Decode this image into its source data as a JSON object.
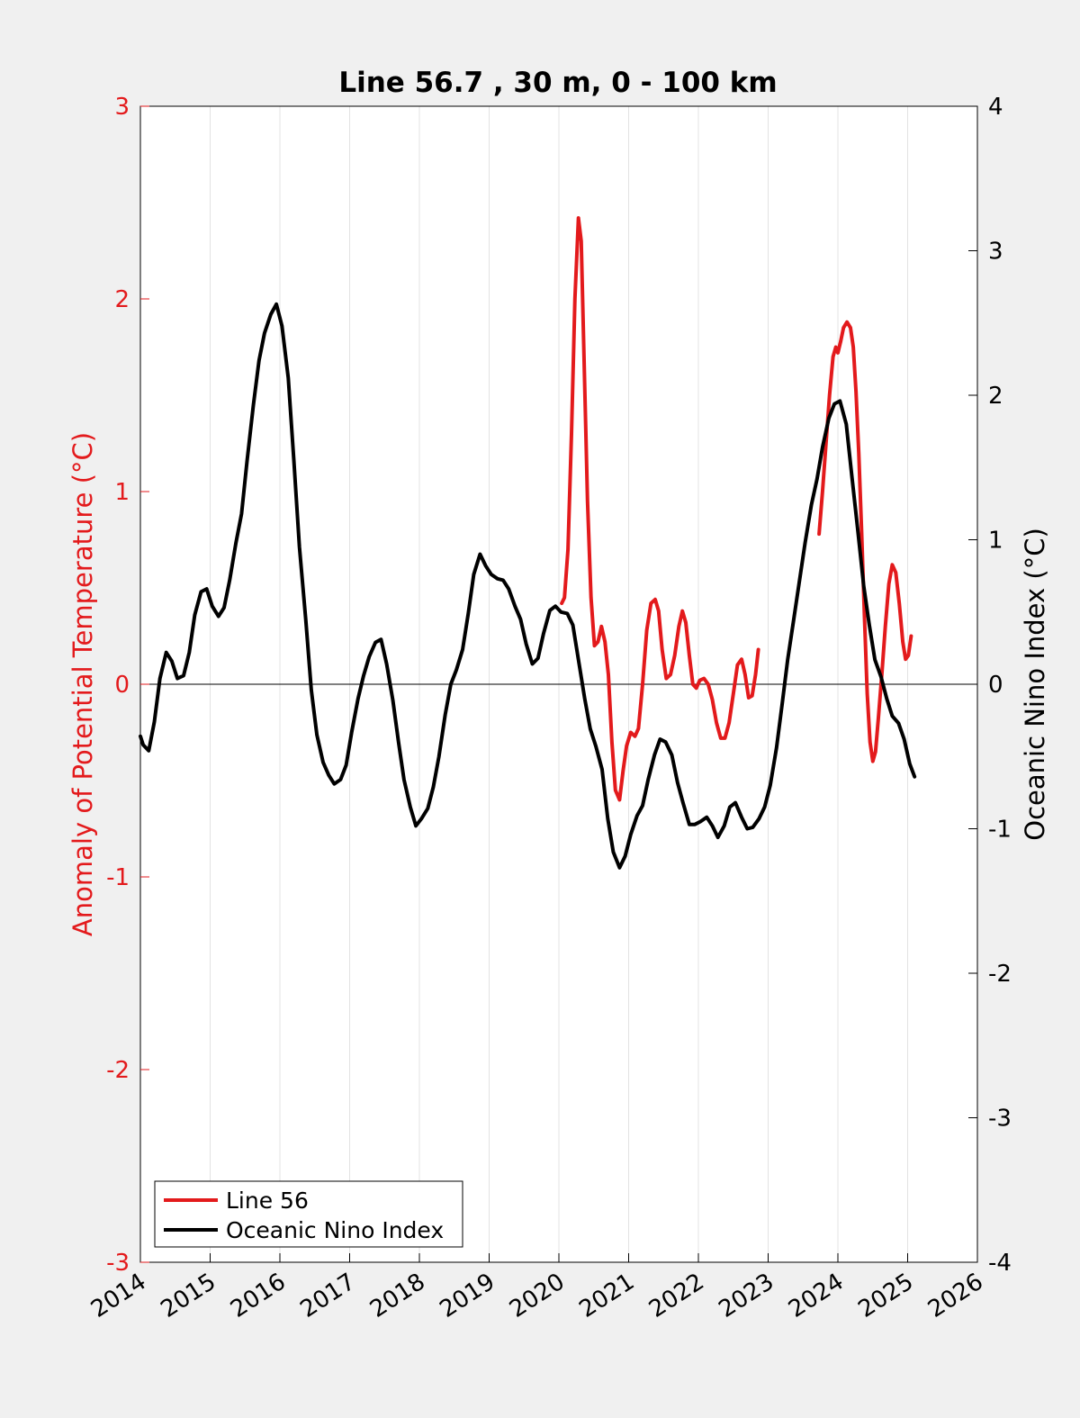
{
  "chart_data": {
    "type": "line",
    "title": "Line 56.7 , 30 m, 0 - 100 km",
    "xlabel": "",
    "ylabel": "Anomaly of Potential Temperature (°C)",
    "y2label": "Oceanic Nino Index (°C)",
    "xlim": [
      2014,
      2026
    ],
    "ylim": [
      -3,
      3
    ],
    "y2lim": [
      -4,
      4
    ],
    "x_ticks": [
      "2014",
      "2015",
      "2016",
      "2017",
      "2018",
      "2019",
      "2020",
      "2021",
      "2022",
      "2023",
      "2024",
      "2025",
      "2026"
    ],
    "y_ticks": [
      "-3",
      "-2",
      "-1",
      "0",
      "1",
      "2",
      "3"
    ],
    "y2_ticks": [
      "-4",
      "-3",
      "-2",
      "-1",
      "0",
      "1",
      "2",
      "3",
      "4"
    ],
    "grid": "vertical",
    "legend_position": "bottom-left",
    "colors": {
      "line56": "#e31a1c",
      "oni": "#000000",
      "left_axis": "#e31a1c",
      "right_axis": "#000000"
    },
    "series": [
      {
        "name": "Line 56",
        "axis": "left",
        "segments": [
          [
            [
              2020.04,
              0.42
            ],
            [
              2020.08,
              0.45
            ],
            [
              2020.13,
              0.7
            ],
            [
              2020.18,
              1.3
            ],
            [
              2020.23,
              2.0
            ],
            [
              2020.28,
              2.42
            ],
            [
              2020.32,
              2.3
            ],
            [
              2020.36,
              1.7
            ],
            [
              2020.41,
              0.95
            ],
            [
              2020.46,
              0.45
            ],
            [
              2020.51,
              0.2
            ],
            [
              2020.56,
              0.22
            ],
            [
              2020.61,
              0.3
            ],
            [
              2020.66,
              0.22
            ],
            [
              2020.71,
              0.05
            ],
            [
              2020.76,
              -0.3
            ],
            [
              2020.81,
              -0.55
            ],
            [
              2020.87,
              -0.6
            ],
            [
              2020.92,
              -0.45
            ],
            [
              2020.97,
              -0.32
            ],
            [
              2021.03,
              -0.25
            ],
            [
              2021.09,
              -0.27
            ],
            [
              2021.14,
              -0.23
            ],
            [
              2021.2,
              0.0
            ],
            [
              2021.26,
              0.28
            ],
            [
              2021.32,
              0.42
            ],
            [
              2021.38,
              0.44
            ],
            [
              2021.43,
              0.38
            ],
            [
              2021.48,
              0.18
            ],
            [
              2021.54,
              0.03
            ],
            [
              2021.6,
              0.05
            ],
            [
              2021.66,
              0.15
            ],
            [
              2021.72,
              0.3
            ],
            [
              2021.77,
              0.38
            ],
            [
              2021.82,
              0.32
            ],
            [
              2021.87,
              0.15
            ],
            [
              2021.92,
              0.0
            ],
            [
              2021.97,
              -0.02
            ],
            [
              2022.02,
              0.02
            ],
            [
              2022.08,
              0.03
            ],
            [
              2022.14,
              0.0
            ],
            [
              2022.2,
              -0.08
            ],
            [
              2022.26,
              -0.2
            ],
            [
              2022.32,
              -0.28
            ],
            [
              2022.38,
              -0.28
            ],
            [
              2022.44,
              -0.2
            ],
            [
              2022.5,
              -0.05
            ],
            [
              2022.56,
              0.1
            ],
            [
              2022.62,
              0.13
            ],
            [
              2022.67,
              0.05
            ],
            [
              2022.72,
              -0.07
            ],
            [
              2022.77,
              -0.06
            ],
            [
              2022.82,
              0.05
            ],
            [
              2022.86,
              0.18
            ]
          ],
          [
            [
              2023.73,
              0.78
            ],
            [
              2023.78,
              1.0
            ],
            [
              2023.83,
              1.25
            ],
            [
              2023.88,
              1.5
            ],
            [
              2023.93,
              1.7
            ],
            [
              2023.97,
              1.75
            ],
            [
              2024.0,
              1.72
            ],
            [
              2024.04,
              1.78
            ],
            [
              2024.08,
              1.85
            ],
            [
              2024.13,
              1.88
            ],
            [
              2024.18,
              1.85
            ],
            [
              2024.22,
              1.75
            ],
            [
              2024.26,
              1.52
            ],
            [
              2024.3,
              1.2
            ],
            [
              2024.34,
              0.8
            ],
            [
              2024.38,
              0.35
            ],
            [
              2024.42,
              -0.05
            ],
            [
              2024.46,
              -0.3
            ],
            [
              2024.5,
              -0.4
            ],
            [
              2024.54,
              -0.35
            ],
            [
              2024.58,
              -0.18
            ],
            [
              2024.63,
              0.05
            ],
            [
              2024.68,
              0.3
            ],
            [
              2024.73,
              0.52
            ],
            [
              2024.78,
              0.62
            ],
            [
              2024.83,
              0.58
            ],
            [
              2024.88,
              0.42
            ],
            [
              2024.93,
              0.22
            ],
            [
              2024.97,
              0.13
            ],
            [
              2025.01,
              0.15
            ],
            [
              2025.05,
              0.25
            ]
          ]
        ]
      },
      {
        "name": "Oceanic Nino Index",
        "axis": "right",
        "segments": [
          [
            [
              2014.0,
              -0.36
            ],
            [
              2014.04,
              -0.42
            ],
            [
              2014.12,
              -0.46
            ],
            [
              2014.2,
              -0.26
            ],
            [
              2014.28,
              0.04
            ],
            [
              2014.37,
              0.22
            ],
            [
              2014.45,
              0.16
            ],
            [
              2014.53,
              0.04
            ],
            [
              2014.62,
              0.06
            ],
            [
              2014.7,
              0.22
            ],
            [
              2014.78,
              0.48
            ],
            [
              2014.87,
              0.64
            ],
            [
              2014.95,
              0.66
            ],
            [
              2015.03,
              0.54
            ],
            [
              2015.12,
              0.47
            ],
            [
              2015.2,
              0.53
            ],
            [
              2015.28,
              0.72
            ],
            [
              2015.37,
              0.98
            ],
            [
              2015.45,
              1.18
            ],
            [
              2015.53,
              1.55
            ],
            [
              2015.62,
              1.93
            ],
            [
              2015.7,
              2.24
            ],
            [
              2015.78,
              2.43
            ],
            [
              2015.87,
              2.56
            ],
            [
              2015.95,
              2.63
            ],
            [
              2016.03,
              2.48
            ],
            [
              2016.12,
              2.12
            ],
            [
              2016.2,
              1.55
            ],
            [
              2016.28,
              0.95
            ],
            [
              2016.37,
              0.45
            ],
            [
              2016.45,
              -0.04
            ],
            [
              2016.53,
              -0.35
            ],
            [
              2016.62,
              -0.54
            ],
            [
              2016.7,
              -0.63
            ],
            [
              2016.78,
              -0.69
            ],
            [
              2016.87,
              -0.66
            ],
            [
              2016.95,
              -0.56
            ],
            [
              2017.03,
              -0.33
            ],
            [
              2017.12,
              -0.1
            ],
            [
              2017.2,
              0.06
            ],
            [
              2017.28,
              0.19
            ],
            [
              2017.37,
              0.29
            ],
            [
              2017.45,
              0.31
            ],
            [
              2017.53,
              0.14
            ],
            [
              2017.62,
              -0.11
            ],
            [
              2017.7,
              -0.4
            ],
            [
              2017.78,
              -0.66
            ],
            [
              2017.87,
              -0.85
            ],
            [
              2017.95,
              -0.98
            ],
            [
              2018.03,
              -0.93
            ],
            [
              2018.12,
              -0.86
            ],
            [
              2018.2,
              -0.71
            ],
            [
              2018.28,
              -0.5
            ],
            [
              2018.37,
              -0.21
            ],
            [
              2018.45,
              0.0
            ],
            [
              2018.53,
              0.1
            ],
            [
              2018.62,
              0.24
            ],
            [
              2018.7,
              0.49
            ],
            [
              2018.78,
              0.76
            ],
            [
              2018.87,
              0.9
            ],
            [
              2018.95,
              0.82
            ],
            [
              2019.03,
              0.76
            ],
            [
              2019.12,
              0.73
            ],
            [
              2019.2,
              0.72
            ],
            [
              2019.28,
              0.66
            ],
            [
              2019.37,
              0.54
            ],
            [
              2019.45,
              0.45
            ],
            [
              2019.53,
              0.28
            ],
            [
              2019.62,
              0.14
            ],
            [
              2019.7,
              0.18
            ],
            [
              2019.78,
              0.35
            ],
            [
              2019.87,
              0.51
            ],
            [
              2019.95,
              0.54
            ],
            [
              2020.03,
              0.5
            ],
            [
              2020.12,
              0.49
            ],
            [
              2020.2,
              0.41
            ],
            [
              2020.28,
              0.17
            ],
            [
              2020.37,
              -0.1
            ],
            [
              2020.45,
              -0.31
            ],
            [
              2020.53,
              -0.43
            ],
            [
              2020.62,
              -0.59
            ],
            [
              2020.7,
              -0.93
            ],
            [
              2020.78,
              -1.16
            ],
            [
              2020.87,
              -1.27
            ],
            [
              2020.95,
              -1.19
            ],
            [
              2021.03,
              -1.04
            ],
            [
              2021.12,
              -0.91
            ],
            [
              2021.2,
              -0.84
            ],
            [
              2021.28,
              -0.66
            ],
            [
              2021.37,
              -0.49
            ],
            [
              2021.45,
              -0.38
            ],
            [
              2021.53,
              -0.4
            ],
            [
              2021.62,
              -0.49
            ],
            [
              2021.7,
              -0.68
            ],
            [
              2021.78,
              -0.82
            ],
            [
              2021.87,
              -0.97
            ],
            [
              2021.95,
              -0.97
            ],
            [
              2022.03,
              -0.95
            ],
            [
              2022.12,
              -0.92
            ],
            [
              2022.2,
              -0.98
            ],
            [
              2022.28,
              -1.06
            ],
            [
              2022.37,
              -0.98
            ],
            [
              2022.45,
              -0.85
            ],
            [
              2022.53,
              -0.82
            ],
            [
              2022.62,
              -0.92
            ],
            [
              2022.7,
              -1.0
            ],
            [
              2022.78,
              -0.99
            ],
            [
              2022.87,
              -0.93
            ],
            [
              2022.95,
              -0.85
            ],
            [
              2023.03,
              -0.7
            ],
            [
              2023.12,
              -0.44
            ],
            [
              2023.2,
              -0.14
            ],
            [
              2023.28,
              0.17
            ],
            [
              2023.37,
              0.46
            ],
            [
              2023.45,
              0.72
            ],
            [
              2023.53,
              0.98
            ],
            [
              2023.62,
              1.24
            ],
            [
              2023.7,
              1.42
            ],
            [
              2023.78,
              1.64
            ],
            [
              2023.87,
              1.84
            ],
            [
              2023.95,
              1.94
            ],
            [
              2024.03,
              1.96
            ],
            [
              2024.12,
              1.8
            ],
            [
              2024.2,
              1.44
            ],
            [
              2024.28,
              1.09
            ],
            [
              2024.37,
              0.68
            ],
            [
              2024.45,
              0.41
            ],
            [
              2024.53,
              0.17
            ],
            [
              2024.62,
              0.05
            ],
            [
              2024.7,
              -0.1
            ],
            [
              2024.78,
              -0.22
            ],
            [
              2024.87,
              -0.27
            ],
            [
              2024.95,
              -0.38
            ],
            [
              2025.03,
              -0.55
            ],
            [
              2025.1,
              -0.64
            ]
          ]
        ]
      }
    ]
  },
  "legend": {
    "items": [
      "Line 56",
      "Oceanic Nino Index"
    ]
  }
}
